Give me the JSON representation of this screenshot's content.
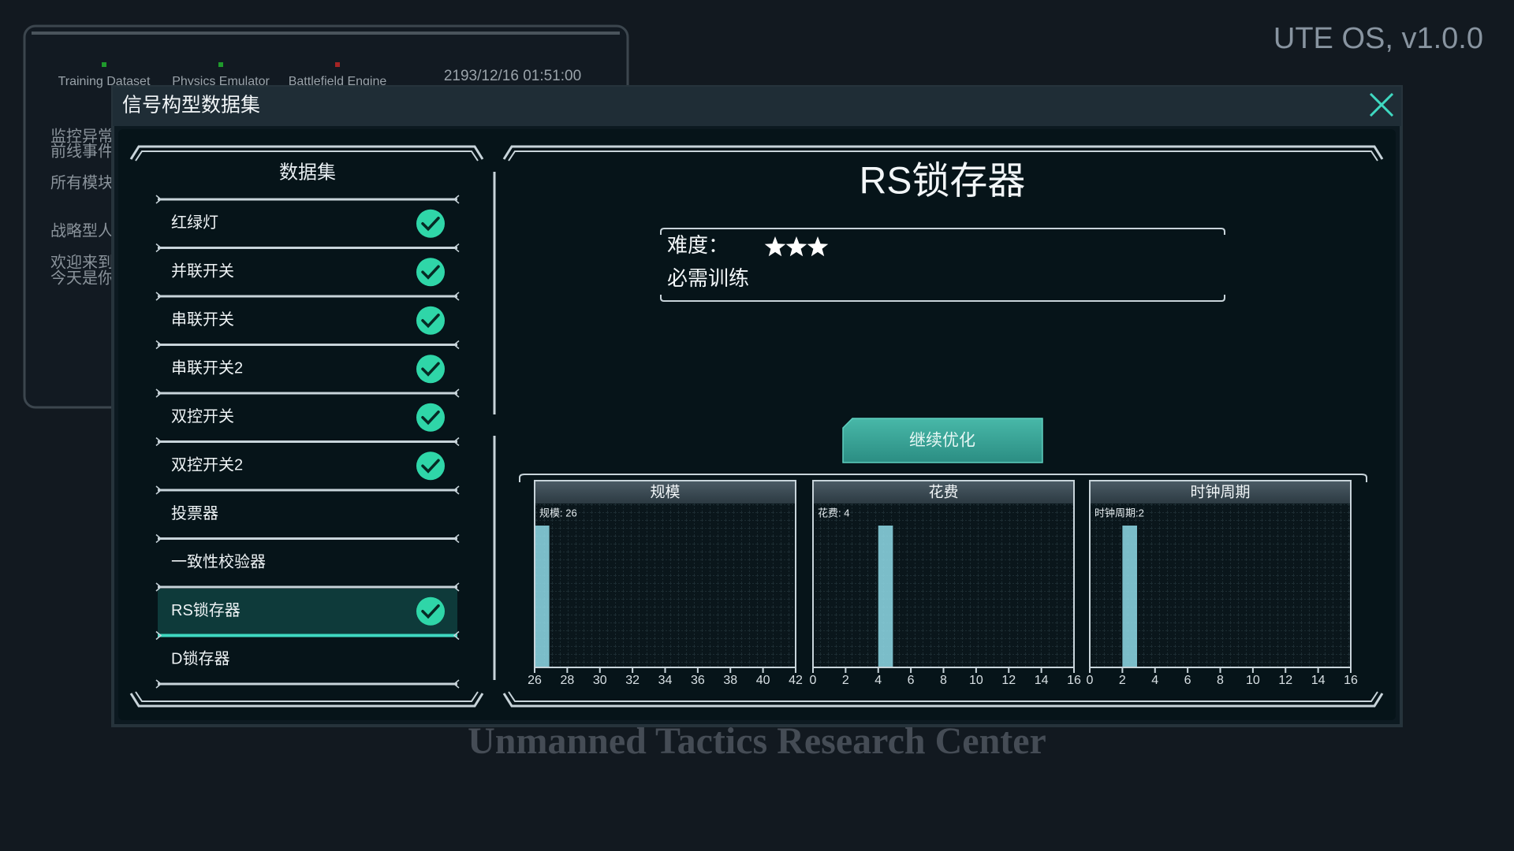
{
  "os_version": "UTE OS, v1.0.0",
  "background_window": {
    "tabs": [
      {
        "label": "Training Dataset",
        "status_color": "#1f9a2c"
      },
      {
        "label": "Physics Emulator",
        "status_color": "#1f9a2c"
      },
      {
        "label": "Battlefield Engine",
        "status_color": "#a52424"
      }
    ],
    "datetime": "2193/12/16 01:51:00",
    "lines": [
      "监控异常",
      "前线事件",
      "所有模块",
      "战略型人",
      "欢迎来到",
      "今天是你"
    ]
  },
  "dialog": {
    "title": "信号构型数据集",
    "dataset_list": {
      "title": "数据集",
      "items": [
        {
          "label": "红绿灯",
          "completed": true,
          "selected": false
        },
        {
          "label": "并联开关",
          "completed": true,
          "selected": false
        },
        {
          "label": "串联开关",
          "completed": true,
          "selected": false
        },
        {
          "label": "串联开关2",
          "completed": true,
          "selected": false
        },
        {
          "label": "双控开关",
          "completed": true,
          "selected": false
        },
        {
          "label": "双控开关2",
          "completed": true,
          "selected": false
        },
        {
          "label": "投票器",
          "completed": false,
          "selected": false
        },
        {
          "label": "一致性校验器",
          "completed": false,
          "selected": false
        },
        {
          "label": "RS锁存器",
          "completed": true,
          "selected": true
        },
        {
          "label": "D锁存器",
          "completed": false,
          "selected": false
        }
      ]
    },
    "detail": {
      "title": "RS锁存器",
      "difficulty_label": "难度：",
      "difficulty": 3,
      "required_label": "必需训练",
      "button": "继续优化"
    }
  },
  "chart_data": [
    {
      "type": "bar",
      "title": "规模",
      "xlim": [
        26,
        42
      ],
      "xticks": [
        26,
        28,
        30,
        32,
        34,
        36,
        38,
        40,
        42
      ],
      "values": [
        26
      ],
      "value_labels": [
        "规模: 26"
      ],
      "color": "#8fdbe8"
    },
    {
      "type": "bar",
      "title": "花费",
      "xlim": [
        0,
        16
      ],
      "xticks": [
        0,
        2,
        4,
        6,
        8,
        10,
        12,
        14,
        16
      ],
      "values": [
        4
      ],
      "value_labels": [
        "花费: 4"
      ],
      "color": "#8fdbe8"
    },
    {
      "type": "bar",
      "title": "时钟周期",
      "xlim": [
        0,
        16
      ],
      "xticks": [
        0,
        2,
        4,
        6,
        8,
        10,
        12,
        14,
        16
      ],
      "values": [
        2
      ],
      "value_labels": [
        "时钟周期:2"
      ],
      "color": "#8fdbe8"
    }
  ],
  "footer": "Unmanned Tactics Research Center"
}
